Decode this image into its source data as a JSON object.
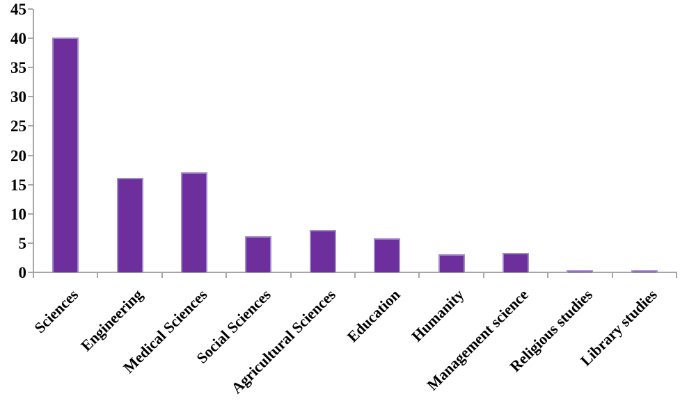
{
  "figure": {
    "background_color": "#ffffff",
    "axis_color": "#a6a6a6",
    "text_color": "#000000"
  },
  "chart_data": {
    "type": "bar",
    "title": "",
    "xlabel": "",
    "ylabel": "",
    "categories": [
      "Sciences",
      "Engineering",
      "Medical Sciences",
      "Social Sciences",
      "Agricultural Sciences",
      "Education",
      "Humanity",
      "Management science",
      "Religious studies",
      "Library studies"
    ],
    "values": [
      40.1,
      16.2,
      17.1,
      6.2,
      7.3,
      5.8,
      3.1,
      3.3,
      0.4,
      0.4
    ],
    "ylim": [
      0,
      45
    ],
    "yticks": [
      0,
      5,
      10,
      15,
      20,
      25,
      30,
      35,
      40,
      45
    ],
    "grid": false,
    "legend": "none",
    "x_label_rotation_deg": 45,
    "bar_color": "#6c2f9b",
    "bar_border_color": "#a189ce",
    "axis_color": "#a6a6a6",
    "label_color": "#000000"
  }
}
